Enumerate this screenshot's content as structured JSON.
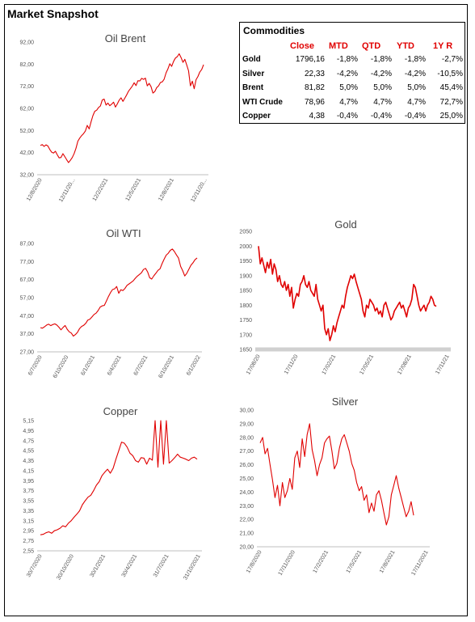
{
  "page": {
    "title": "Market Snapshot"
  },
  "table": {
    "title": "Commodities",
    "headers": [
      "Close",
      "MTD",
      "QTD",
      "YTD",
      "1Y R"
    ],
    "rows": [
      {
        "name": "Gold",
        "values": [
          "1796,16",
          "-1,8%",
          "-1,8%",
          "-1,8%",
          "-2,7%"
        ]
      },
      {
        "name": "Silver",
        "values": [
          "22,33",
          "-4,2%",
          "-4,2%",
          "-4,2%",
          "-10,5%"
        ]
      },
      {
        "name": "Brent",
        "values": [
          "81,82",
          "5,0%",
          "5,0%",
          "5,0%",
          "45,4%"
        ]
      },
      {
        "name": "WTI Crude",
        "values": [
          "78,96",
          "4,7%",
          "4,7%",
          "4,7%",
          "72,7%"
        ]
      },
      {
        "name": "Copper",
        "values": [
          "4,38",
          "-0,4%",
          "-0,4%",
          "-0,4%",
          "25,0%"
        ]
      }
    ]
  },
  "chart_data": [
    {
      "id": "brent",
      "type": "line",
      "title": "Oil Brent",
      "color": "#e00000",
      "ylim": [
        32,
        92
      ],
      "yticks": [
        "32,00",
        "42,00",
        "52,00",
        "62,00",
        "72,00",
        "82,00",
        "92,00"
      ],
      "xticks": [
        "12/8/2020",
        "12/11/20...",
        "12/2/2021",
        "12/5/2021",
        "12/8/2021",
        "12/11/20..."
      ],
      "values": [
        45.2,
        45.6,
        44.8,
        45.5,
        45.0,
        43.4,
        42.2,
        41.8,
        42.6,
        41.0,
        39.6,
        39.8,
        41.5,
        40.2,
        38.8,
        37.5,
        38.5,
        39.8,
        41.6,
        44.0,
        47.2,
        48.6,
        49.7,
        50.6,
        51.8,
        54.3,
        52.7,
        55.9,
        58.7,
        60.7,
        61.2,
        62.4,
        63.1,
        65.8,
        66.2,
        63.5,
        64.4,
        63.2,
        63.9,
        64.8,
        62.6,
        64.0,
        65.7,
        66.8,
        65.2,
        66.6,
        68.1,
        69.8,
        70.9,
        72.1,
        73.6,
        72.3,
        74.5,
        74.4,
        75.6,
        75.1,
        75.7,
        72.2,
        73.3,
        71.8,
        68.9,
        69.6,
        71.4,
        72.2,
        73.7,
        74.0,
        75.2,
        78.1,
        79.9,
        82.2,
        81.0,
        83.3,
        84.8,
        85.4,
        86.7,
        85.0,
        82.8,
        84.2,
        81.7,
        79.0,
        72.2,
        74.3,
        70.9,
        75.0,
        76.4,
        78.5,
        79.6,
        81.8
      ]
    },
    {
      "id": "wti",
      "type": "line",
      "title": "Oil WTI",
      "color": "#e00000",
      "ylim": [
        27,
        87
      ],
      "yticks": [
        "27,00",
        "37,00",
        "47,00",
        "57,00",
        "67,00",
        "77,00",
        "87,00"
      ],
      "xticks": [
        "6/7/2020",
        "6/10/2020",
        "6/1/2021",
        "6/4/2021",
        "6/7/2021",
        "6/10/2021",
        "6/1/2022"
      ],
      "values": [
        40.4,
        40.1,
        40.9,
        41.8,
        42.3,
        41.5,
        42.1,
        42.5,
        41.8,
        40.6,
        39.2,
        40.5,
        41.6,
        39.5,
        38.1,
        37.4,
        35.7,
        36.6,
        37.8,
        39.9,
        41.1,
        41.7,
        42.8,
        44.6,
        45.1,
        46.3,
        47.7,
        48.4,
        49.9,
        51.8,
        52.5,
        52.7,
        55.1,
        57.6,
        59.8,
        61.5,
        61.9,
        63.2,
        59.4,
        61.4,
        60.9,
        62.1,
        63.8,
        64.6,
        65.4,
        66.3,
        67.7,
        68.9,
        69.8,
        70.8,
        72.6,
        73.2,
        71.3,
        68.0,
        67.3,
        69.1,
        70.5,
        72.1,
        73.0,
        75.8,
        78.3,
        80.5,
        81.6,
        83.2,
        83.9,
        82.5,
        80.6,
        78.9,
        74.3,
        72.0,
        69.0,
        70.5,
        72.7,
        74.9,
        76.3,
        78.0,
        79.0
      ]
    },
    {
      "id": "gold",
      "type": "line",
      "title": "Gold",
      "color": "#e00000",
      "ylim": [
        1650,
        2050
      ],
      "yticks": [
        "1650",
        "1700",
        "1750",
        "1800",
        "1850",
        "1900",
        "1950",
        "2000",
        "2050"
      ],
      "xticks": [
        "17/08/20",
        "17/11/20",
        "17/02/21",
        "17/05/21",
        "17/08/21",
        "17/11/21"
      ],
      "values": [
        2000,
        1940,
        1960,
        1935,
        1910,
        1945,
        1925,
        1955,
        1905,
        1940,
        1920,
        1880,
        1900,
        1870,
        1860,
        1880,
        1850,
        1870,
        1830,
        1860,
        1790,
        1820,
        1840,
        1830,
        1870,
        1880,
        1900,
        1870,
        1860,
        1880,
        1850,
        1840,
        1830,
        1870,
        1820,
        1800,
        1780,
        1800,
        1720,
        1700,
        1720,
        1680,
        1700,
        1730,
        1710,
        1740,
        1760,
        1780,
        1800,
        1790,
        1830,
        1860,
        1880,
        1900,
        1890,
        1905,
        1880,
        1860,
        1840,
        1820,
        1780,
        1760,
        1800,
        1790,
        1820,
        1810,
        1800,
        1780,
        1790,
        1770,
        1780,
        1760,
        1800,
        1810,
        1790,
        1770,
        1750,
        1760,
        1780,
        1790,
        1800,
        1810,
        1790,
        1800,
        1780,
        1760,
        1790,
        1800,
        1820,
        1870,
        1860,
        1830,
        1800,
        1780,
        1790,
        1800,
        1780,
        1800,
        1810,
        1830,
        1820,
        1800,
        1796
      ]
    },
    {
      "id": "copper",
      "type": "line",
      "title": "Copper",
      "color": "#e00000",
      "ylim": [
        2.55,
        5.15
      ],
      "yticks": [
        "2,55",
        "2,75",
        "2,95",
        "3,15",
        "3,35",
        "3,55",
        "3,75",
        "3,95",
        "4,15",
        "4,35",
        "4,55",
        "4,75",
        "4,95",
        "5,15"
      ],
      "xticks": [
        "30/7/2020",
        "30/10/2020",
        "30/1/2021",
        "30/4/2021",
        "31/7/2021",
        "31/10/2021"
      ],
      "values": [
        2.87,
        2.88,
        2.91,
        2.93,
        2.9,
        2.95,
        2.97,
        3.0,
        3.05,
        3.03,
        3.1,
        3.15,
        3.22,
        3.28,
        3.35,
        3.47,
        3.55,
        3.62,
        3.66,
        3.75,
        3.86,
        3.93,
        4.05,
        4.12,
        4.18,
        4.1,
        4.2,
        4.38,
        4.55,
        4.72,
        4.7,
        4.62,
        4.5,
        4.45,
        4.35,
        4.32,
        4.41,
        4.4,
        4.28,
        4.4,
        4.36,
        5.15,
        4.22,
        5.15,
        4.28,
        5.15,
        4.3,
        4.35,
        4.41,
        4.48,
        4.42,
        4.4,
        4.38,
        4.35,
        4.4,
        4.42,
        4.38
      ]
    },
    {
      "id": "silver",
      "type": "line",
      "title": "Silver",
      "color": "#e00000",
      "ylim": [
        20,
        30
      ],
      "yticks": [
        "20,00",
        "21,00",
        "22,00",
        "23,00",
        "24,00",
        "25,00",
        "26,00",
        "27,00",
        "28,00",
        "29,00",
        "30,00"
      ],
      "xticks": [
        "17/8/2020",
        "17/11/2020",
        "17/2/2021",
        "17/5/2021",
        "17/8/2021",
        "17/11/2021"
      ],
      "values": [
        27.6,
        28.0,
        26.8,
        27.2,
        26.0,
        24.9,
        23.6,
        24.5,
        23.0,
        24.7,
        23.6,
        24.1,
        25.0,
        24.2,
        26.5,
        27.0,
        25.8,
        27.9,
        26.6,
        28.2,
        29.0,
        27.1,
        26.3,
        25.2,
        26.0,
        26.5,
        27.6,
        27.9,
        28.1,
        27.0,
        25.7,
        26.1,
        27.2,
        27.9,
        28.2,
        27.6,
        27.0,
        26.1,
        25.6,
        24.7,
        24.1,
        24.4,
        23.4,
        23.8,
        22.5,
        23.2,
        22.6,
        23.8,
        24.1,
        23.4,
        22.5,
        21.6,
        22.2,
        23.8,
        24.5,
        25.2,
        24.3,
        23.6,
        22.9,
        22.2,
        22.6,
        23.3,
        22.3
      ]
    }
  ]
}
